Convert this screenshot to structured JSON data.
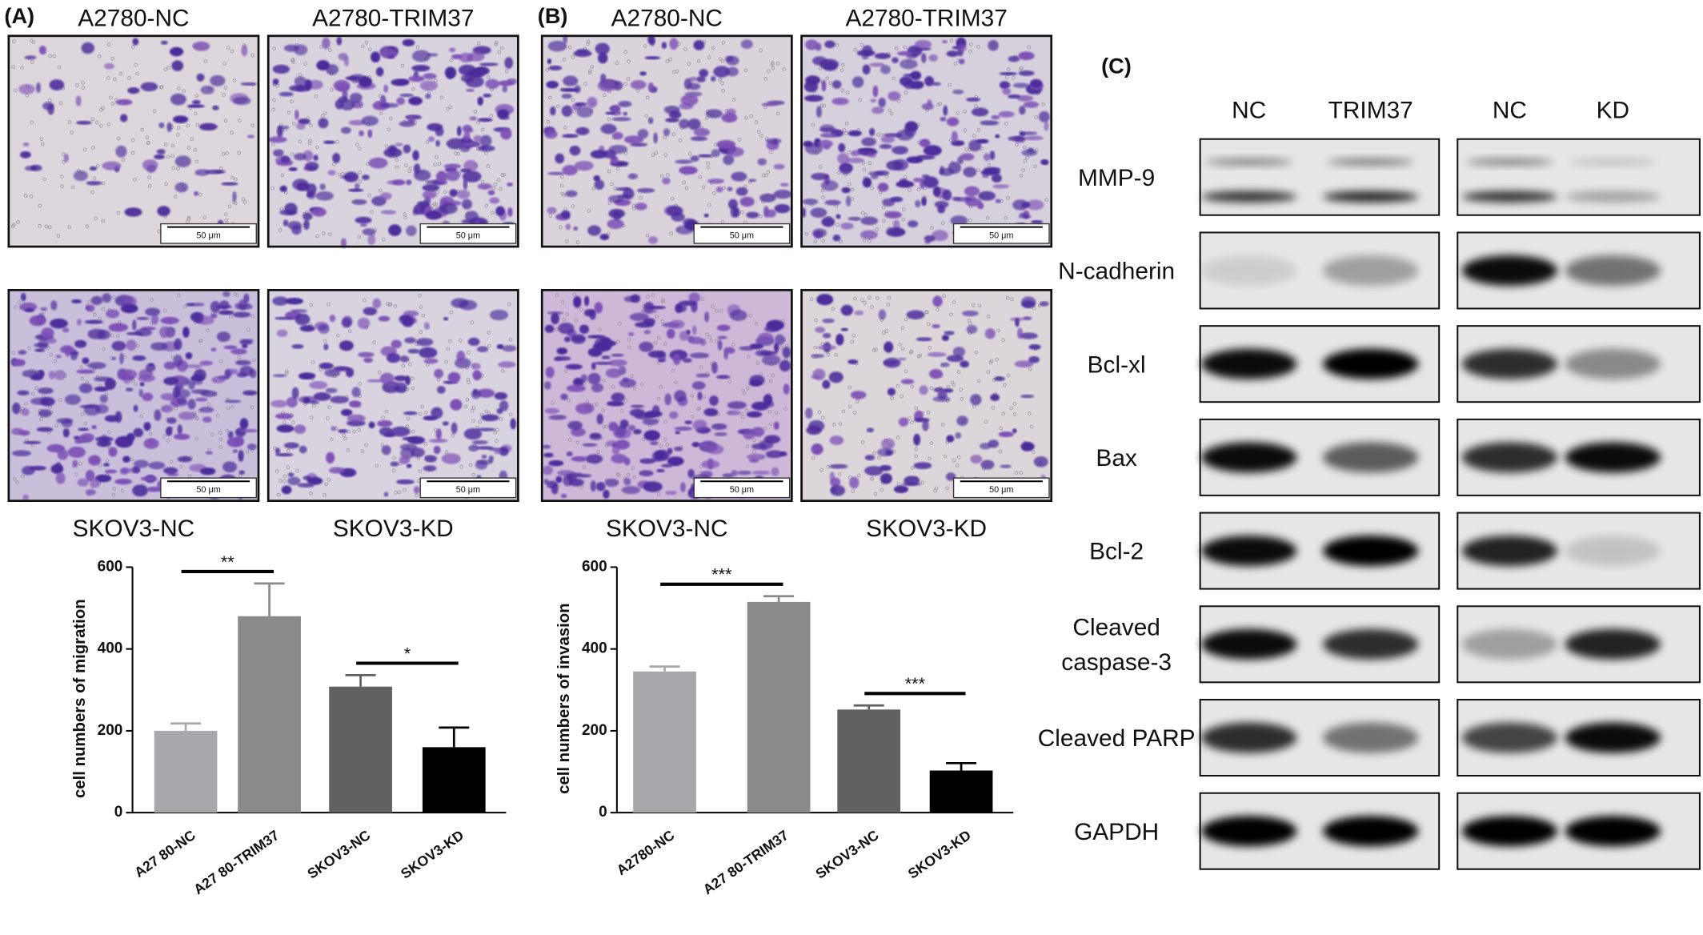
{
  "micrograph_panels": [
    {
      "label": "(A)",
      "images": [
        {
          "caption": "A2780-NC",
          "scale_bar": "50 μm"
        },
        {
          "caption": "A2780-TRIM37",
          "scale_bar": "50 μm"
        },
        {
          "caption": "SKOV3-NC",
          "scale_bar": "50 μm"
        },
        {
          "caption": "SKOV3-KD",
          "scale_bar": "50 μm"
        }
      ]
    },
    {
      "label": "(B)",
      "images": [
        {
          "caption": "A2780-NC",
          "scale_bar": "50 μm"
        },
        {
          "caption": "A2780-TRIM37",
          "scale_bar": "50 μm"
        },
        {
          "caption": "SKOV3-NC",
          "scale_bar": "50 μm"
        },
        {
          "caption": "SKOV3-KD",
          "scale_bar": "50 μm"
        }
      ]
    }
  ],
  "chart_data": [
    {
      "type": "bar",
      "ylabel": "cell numbers of migration",
      "categories": [
        "A27 80-NC",
        "A27 80-TRIM37",
        "SKOV3-NC",
        "SKOV3-KD"
      ],
      "values": [
        200,
        480,
        308,
        160
      ],
      "errors": [
        18,
        80,
        28,
        48
      ],
      "colors": [
        "#a8a8ac",
        "#8a8a8a",
        "#616161",
        "#000000"
      ],
      "ylim": [
        0,
        600
      ],
      "yticks": [
        0,
        200,
        400,
        600
      ],
      "annotations": [
        {
          "text": "**",
          "between": [
            0,
            1
          ]
        },
        {
          "text": "*",
          "between": [
            2,
            3
          ]
        }
      ]
    },
    {
      "type": "bar",
      "ylabel": "cell numbers of invasion",
      "categories": [
        "A2780-NC",
        "A27 80-TRIM37",
        "SKOV3-NC",
        "SKOV3-KD"
      ],
      "values": [
        345,
        515,
        252,
        103
      ],
      "errors": [
        12,
        14,
        10,
        18
      ],
      "colors": [
        "#a8a8ac",
        "#8a8a8a",
        "#616161",
        "#000000"
      ],
      "ylim": [
        0,
        600
      ],
      "yticks": [
        0,
        200,
        400,
        600
      ],
      "annotations": [
        {
          "text": "***",
          "between": [
            0,
            1
          ]
        },
        {
          "text": "***",
          "between": [
            2,
            3
          ]
        }
      ]
    }
  ],
  "blot": {
    "label": "(C)",
    "lanes": [
      [
        "NC",
        "TRIM37"
      ],
      [
        "NC",
        "KD"
      ]
    ],
    "rows": [
      {
        "label": [
          "MMP-9"
        ]
      },
      {
        "label": [
          "N-cadherin"
        ]
      },
      {
        "label": [
          "Bcl-xl"
        ]
      },
      {
        "label": [
          "Bax"
        ]
      },
      {
        "label": [
          "Bcl-2"
        ]
      },
      {
        "label": [
          "Cleaved",
          "caspase-3"
        ]
      },
      {
        "label": [
          "Cleaved PARP"
        ]
      },
      {
        "label": [
          "GAPDH"
        ]
      }
    ]
  }
}
